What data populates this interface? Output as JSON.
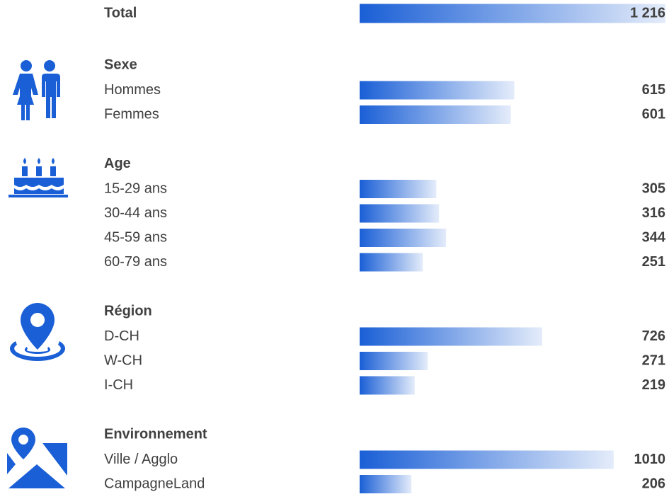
{
  "chart_data": {
    "type": "bar",
    "total": {
      "label": "Total",
      "value": 1216,
      "value_label": "1 216"
    },
    "groups": [
      {
        "title": "Sexe",
        "categories": [
          "Hommes",
          "Femmes"
        ],
        "values": [
          615,
          601
        ]
      },
      {
        "title": "Age",
        "categories": [
          "15-29 ans",
          "30-44 ans",
          "45-59 ans",
          "60-79 ans"
        ],
        "values": [
          305,
          316,
          344,
          251
        ]
      },
      {
        "title": "Région",
        "categories": [
          "D-CH",
          "W-CH",
          "I-CH"
        ],
        "values": [
          726,
          271,
          219
        ]
      },
      {
        "title": "Environnement",
        "categories": [
          "Ville / Agglo",
          "CampagneLand"
        ],
        "values": [
          1010,
          206
        ]
      }
    ],
    "color": "#1a5fd6"
  }
}
